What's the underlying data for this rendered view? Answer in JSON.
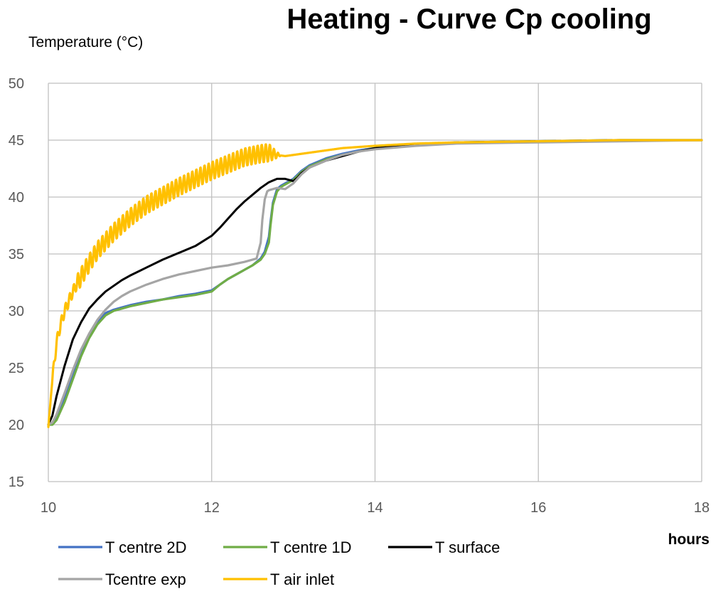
{
  "chart_data": {
    "type": "line",
    "title": "Heating - Curve Cp cooling",
    "ylabel": "Temperature  (°C)",
    "xlabel": "hours",
    "xlim": [
      10,
      18
    ],
    "ylim": [
      15,
      50
    ],
    "x_ticks": [
      10,
      12,
      14,
      16,
      18
    ],
    "y_ticks": [
      15,
      20,
      25,
      30,
      35,
      40,
      45,
      50
    ],
    "grid": true,
    "legend_position": "bottom-left",
    "series": [
      {
        "name": "T centre 2D",
        "color": "#4472C4",
        "x": [
          10.0,
          10.05,
          10.1,
          10.2,
          10.3,
          10.4,
          10.5,
          10.6,
          10.7,
          10.8,
          10.9,
          11.0,
          11.2,
          11.4,
          11.6,
          11.8,
          12.0,
          12.1,
          12.2,
          12.3,
          12.4,
          12.5,
          12.6,
          12.65,
          12.7,
          12.72,
          12.75,
          12.8,
          12.85,
          12.9,
          13.0,
          13.1,
          13.2,
          13.4,
          13.6,
          13.8,
          14.0,
          14.5,
          15.0,
          16.0,
          17.0,
          18.0
        ],
        "y": [
          20.0,
          20.1,
          20.6,
          22.3,
          24.3,
          26.2,
          27.8,
          29.0,
          29.8,
          30.1,
          30.3,
          30.5,
          30.8,
          31.0,
          31.3,
          31.5,
          31.8,
          32.3,
          32.8,
          33.2,
          33.6,
          34.0,
          34.6,
          35.2,
          36.5,
          37.8,
          39.5,
          40.7,
          41.0,
          41.2,
          41.6,
          42.3,
          42.8,
          43.4,
          43.8,
          44.1,
          44.3,
          44.6,
          44.8,
          44.9,
          45.0,
          45.0
        ]
      },
      {
        "name": "T centre 1D",
        "color": "#70AD47",
        "x": [
          10.0,
          10.05,
          10.1,
          10.2,
          10.3,
          10.4,
          10.5,
          10.6,
          10.7,
          10.8,
          10.9,
          11.0,
          11.2,
          11.4,
          11.6,
          11.8,
          12.0,
          12.1,
          12.2,
          12.3,
          12.4,
          12.5,
          12.6,
          12.65,
          12.7,
          12.72,
          12.75,
          12.8,
          12.85,
          12.9,
          13.0,
          13.1,
          13.2,
          13.4,
          13.6,
          13.8,
          14.0,
          14.5,
          15.0,
          16.0,
          17.0,
          18.0
        ],
        "y": [
          20.0,
          20.0,
          20.4,
          22.0,
          24.0,
          26.0,
          27.6,
          28.8,
          29.6,
          30.0,
          30.2,
          30.4,
          30.7,
          31.0,
          31.2,
          31.4,
          31.7,
          32.3,
          32.8,
          33.2,
          33.6,
          34.0,
          34.5,
          35.0,
          36.0,
          37.5,
          39.3,
          40.5,
          40.9,
          41.1,
          41.5,
          42.2,
          42.7,
          43.3,
          43.7,
          44.0,
          44.3,
          44.6,
          44.8,
          44.9,
          45.0,
          45.0
        ]
      },
      {
        "name": "T surface",
        "color": "#000000",
        "x": [
          10.0,
          10.05,
          10.1,
          10.2,
          10.3,
          10.4,
          10.5,
          10.6,
          10.7,
          10.8,
          10.9,
          11.0,
          11.2,
          11.4,
          11.6,
          11.8,
          12.0,
          12.1,
          12.2,
          12.3,
          12.4,
          12.5,
          12.6,
          12.7,
          12.8,
          12.9,
          13.0,
          13.05,
          13.1,
          13.2,
          13.3,
          13.4,
          13.6,
          13.8,
          14.0,
          14.5,
          15.0,
          16.0,
          17.0,
          18.0
        ],
        "y": [
          20.0,
          20.8,
          22.5,
          25.2,
          27.5,
          29.0,
          30.2,
          31.0,
          31.7,
          32.2,
          32.7,
          33.1,
          33.8,
          34.5,
          35.1,
          35.7,
          36.6,
          37.3,
          38.1,
          38.9,
          39.6,
          40.2,
          40.8,
          41.3,
          41.6,
          41.6,
          41.4,
          41.7,
          42.1,
          42.6,
          42.9,
          43.2,
          43.6,
          44.0,
          44.3,
          44.6,
          44.8,
          44.9,
          45.0,
          45.0
        ]
      },
      {
        "name": "Tcentre exp",
        "color": "#A5A5A5",
        "x": [
          10.0,
          10.05,
          10.1,
          10.2,
          10.3,
          10.4,
          10.5,
          10.6,
          10.7,
          10.8,
          10.9,
          11.0,
          11.2,
          11.4,
          11.6,
          11.8,
          12.0,
          12.2,
          12.4,
          12.55,
          12.6,
          12.62,
          12.65,
          12.68,
          12.7,
          12.8,
          12.9,
          13.0,
          13.1,
          13.2,
          13.4,
          13.6,
          13.8,
          14.0,
          14.5,
          15.0,
          16.0,
          17.0,
          18.0
        ],
        "y": [
          20.0,
          20.2,
          20.9,
          22.8,
          24.8,
          26.6,
          28.0,
          29.2,
          30.1,
          30.8,
          31.3,
          31.7,
          32.3,
          32.8,
          33.2,
          33.5,
          33.8,
          34.0,
          34.3,
          34.6,
          36.0,
          38.0,
          39.8,
          40.5,
          40.6,
          40.8,
          40.7,
          41.2,
          42.0,
          42.6,
          43.2,
          43.7,
          44.0,
          44.2,
          44.5,
          44.7,
          44.8,
          44.9,
          45.0
        ]
      },
      {
        "name": "T air inlet",
        "color": "#FFC000",
        "oscillation_amplitude": 0.8,
        "oscillation_period_hours": 0.05,
        "x": [
          10.0,
          10.05,
          10.1,
          10.15,
          10.2,
          10.3,
          10.4,
          10.5,
          10.6,
          10.8,
          11.0,
          11.2,
          11.4,
          11.6,
          11.8,
          12.0,
          12.2,
          12.4,
          12.6,
          12.7,
          12.8,
          12.9,
          13.0,
          13.2,
          13.4,
          13.6,
          13.8,
          14.0,
          14.5,
          15.0,
          16.0,
          17.0,
          18.0
        ],
        "y": [
          19.8,
          24.0,
          27.2,
          28.8,
          30.0,
          31.7,
          33.0,
          34.2,
          35.3,
          36.9,
          38.2,
          39.3,
          40.1,
          40.9,
          41.6,
          42.3,
          42.9,
          43.5,
          43.8,
          43.9,
          43.7,
          43.6,
          43.7,
          43.9,
          44.1,
          44.3,
          44.4,
          44.5,
          44.7,
          44.8,
          44.9,
          45.0,
          45.0
        ]
      }
    ]
  }
}
